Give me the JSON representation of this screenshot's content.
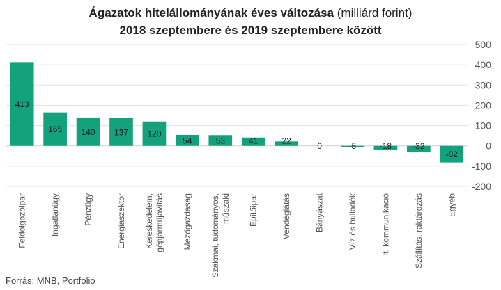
{
  "title": {
    "line1_bold": "Ágazatok hitelállományának éves változása",
    "line1_normal": " (milliárd forint)",
    "line2": "2018 szeptembere és 2019 szeptembere között"
  },
  "source": "Forrás: MNB, Portfolio",
  "colors": {
    "bar": "#13a27c",
    "grid": "#e3e3e3",
    "axis_text": "#555555"
  },
  "chart_data": {
    "type": "bar",
    "title": "Ágazatok hitelállományának éves változása (milliárd forint) 2018 szeptembere és 2019 szeptembere között",
    "xlabel": "",
    "ylabel": "",
    "ylim": [
      -200,
      500
    ],
    "yticks": [
      500,
      400,
      300,
      200,
      100,
      0,
      -100,
      -200
    ],
    "grid": true,
    "y_axis_position": "right",
    "categories": [
      "Feldolgozóipar",
      "Ingatlanügy",
      "Pénzügy",
      "Energiaszektor",
      "Kereskedelem, gépjárműjavítás",
      "Mezőgazdaság",
      "Szakmai, tudományos, műszaki",
      "Építőipar",
      "Vendéglátás",
      "Bányászat",
      "Víz és hulladék",
      "It, kommunikáció",
      "Szállítás, raktározás",
      "Egyéb"
    ],
    "category_lines": [
      [
        "Feldolgozóipar"
      ],
      [
        "Ingatlanügy"
      ],
      [
        "Pénzügy"
      ],
      [
        "Energiaszektor"
      ],
      [
        "Kereskedelem,",
        "gépjárműjavítás"
      ],
      [
        "Mezőgazdaság"
      ],
      [
        "Szakmai, tudományos,",
        "műszaki"
      ],
      [
        "Építőipar"
      ],
      [
        "Vendéglátás"
      ],
      [
        "Bányászat"
      ],
      [
        "Víz és hulladék"
      ],
      [
        "It, kommunikáció"
      ],
      [
        "Szállítás, raktározás"
      ],
      [
        "Egyéb"
      ]
    ],
    "values": [
      413,
      165,
      140,
      137,
      120,
      54,
      53,
      41,
      22,
      0,
      -5,
      -18,
      -32,
      -82
    ]
  }
}
